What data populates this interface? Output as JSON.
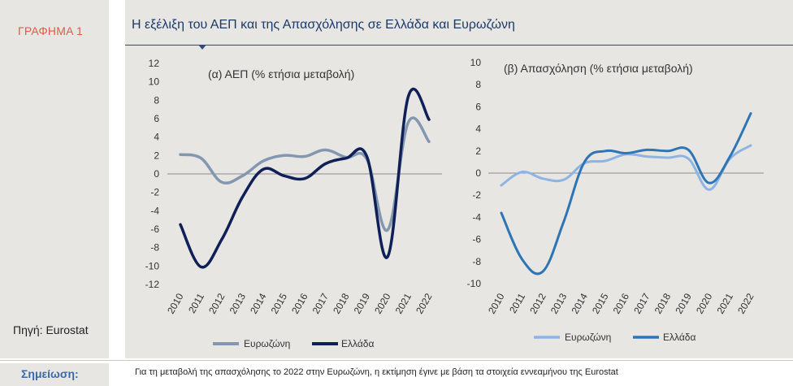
{
  "sidebar": {
    "figure_label": "ΓΡΑΦΗΜΑ 1",
    "source": "Πηγή: Eurostat"
  },
  "header": {
    "title": "Η εξέλιξη του ΑΕΠ και της Απασχόλησης σε Ελλάδα και Ευρωζώνη"
  },
  "note": {
    "label": "Σημείωση:",
    "text": "Για τη μεταβολή της απασχόλησης το 2022 στην Ευρωζώνη, η εκτίμηση έγινε με βάση τα στοιχεία εννεαμήνου της Eurostat"
  },
  "colors": {
    "panel_bg": "#e7e6e2",
    "euro_gdp": "#8497b0",
    "greece_gdp": "#0f1f57",
    "euro_emp": "#8db4e2",
    "greece_emp": "#2e75b6",
    "zero_line": "#8c8c8c"
  },
  "chart_data": [
    {
      "type": "line",
      "title": "(α) ΑΕΠ (% ετήσια μεταβολή)",
      "x": [
        "2010",
        "2011",
        "2012",
        "2013",
        "2014",
        "2015",
        "2016",
        "2017",
        "2018",
        "2019",
        "2020",
        "2021",
        "2022"
      ],
      "ylim": [
        -12,
        12
      ],
      "yticks": [
        12,
        10,
        8,
        6,
        4,
        2,
        0,
        -2,
        -4,
        -6,
        -8,
        -10,
        -12
      ],
      "grid": false,
      "legend_position": "bottom",
      "series": [
        {
          "name": "Ευρωζώνη",
          "values": [
            2.1,
            1.7,
            -0.9,
            -0.2,
            1.4,
            2.0,
            1.9,
            2.6,
            1.8,
            1.6,
            -6.1,
            5.6,
            3.5
          ],
          "color": "#8497b0"
        },
        {
          "name": "Ελλάδα",
          "values": [
            -5.5,
            -10.1,
            -7.1,
            -2.5,
            0.5,
            -0.2,
            -0.5,
            1.1,
            1.7,
            1.9,
            -9.0,
            8.4,
            5.9
          ],
          "color": "#0f1f57"
        }
      ]
    },
    {
      "type": "line",
      "title": "(β) Απασχόληση (% ετήσια μεταβολή)",
      "x": [
        "2010",
        "2011",
        "2012",
        "2013",
        "2014",
        "2015",
        "2016",
        "2017",
        "2018",
        "2019",
        "2020",
        "2021",
        "2022"
      ],
      "ylim": [
        -10,
        10
      ],
      "yticks": [
        10,
        8,
        6,
        4,
        2,
        0,
        -2,
        -4,
        -6,
        -8,
        -10
      ],
      "grid": false,
      "legend_position": "bottom",
      "series": [
        {
          "name": "Ευρωζώνη",
          "values": [
            -1.1,
            0.1,
            -0.5,
            -0.6,
            0.9,
            1.1,
            1.7,
            1.5,
            1.4,
            1.3,
            -1.5,
            1.3,
            2.5
          ],
          "color": "#8db4e2"
        },
        {
          "name": "Ελλάδα",
          "values": [
            -3.6,
            -7.8,
            -8.9,
            -4.4,
            1.0,
            2.0,
            1.8,
            2.1,
            2.0,
            2.1,
            -0.9,
            1.5,
            5.4
          ],
          "color": "#2e75b6"
        }
      ]
    }
  ]
}
